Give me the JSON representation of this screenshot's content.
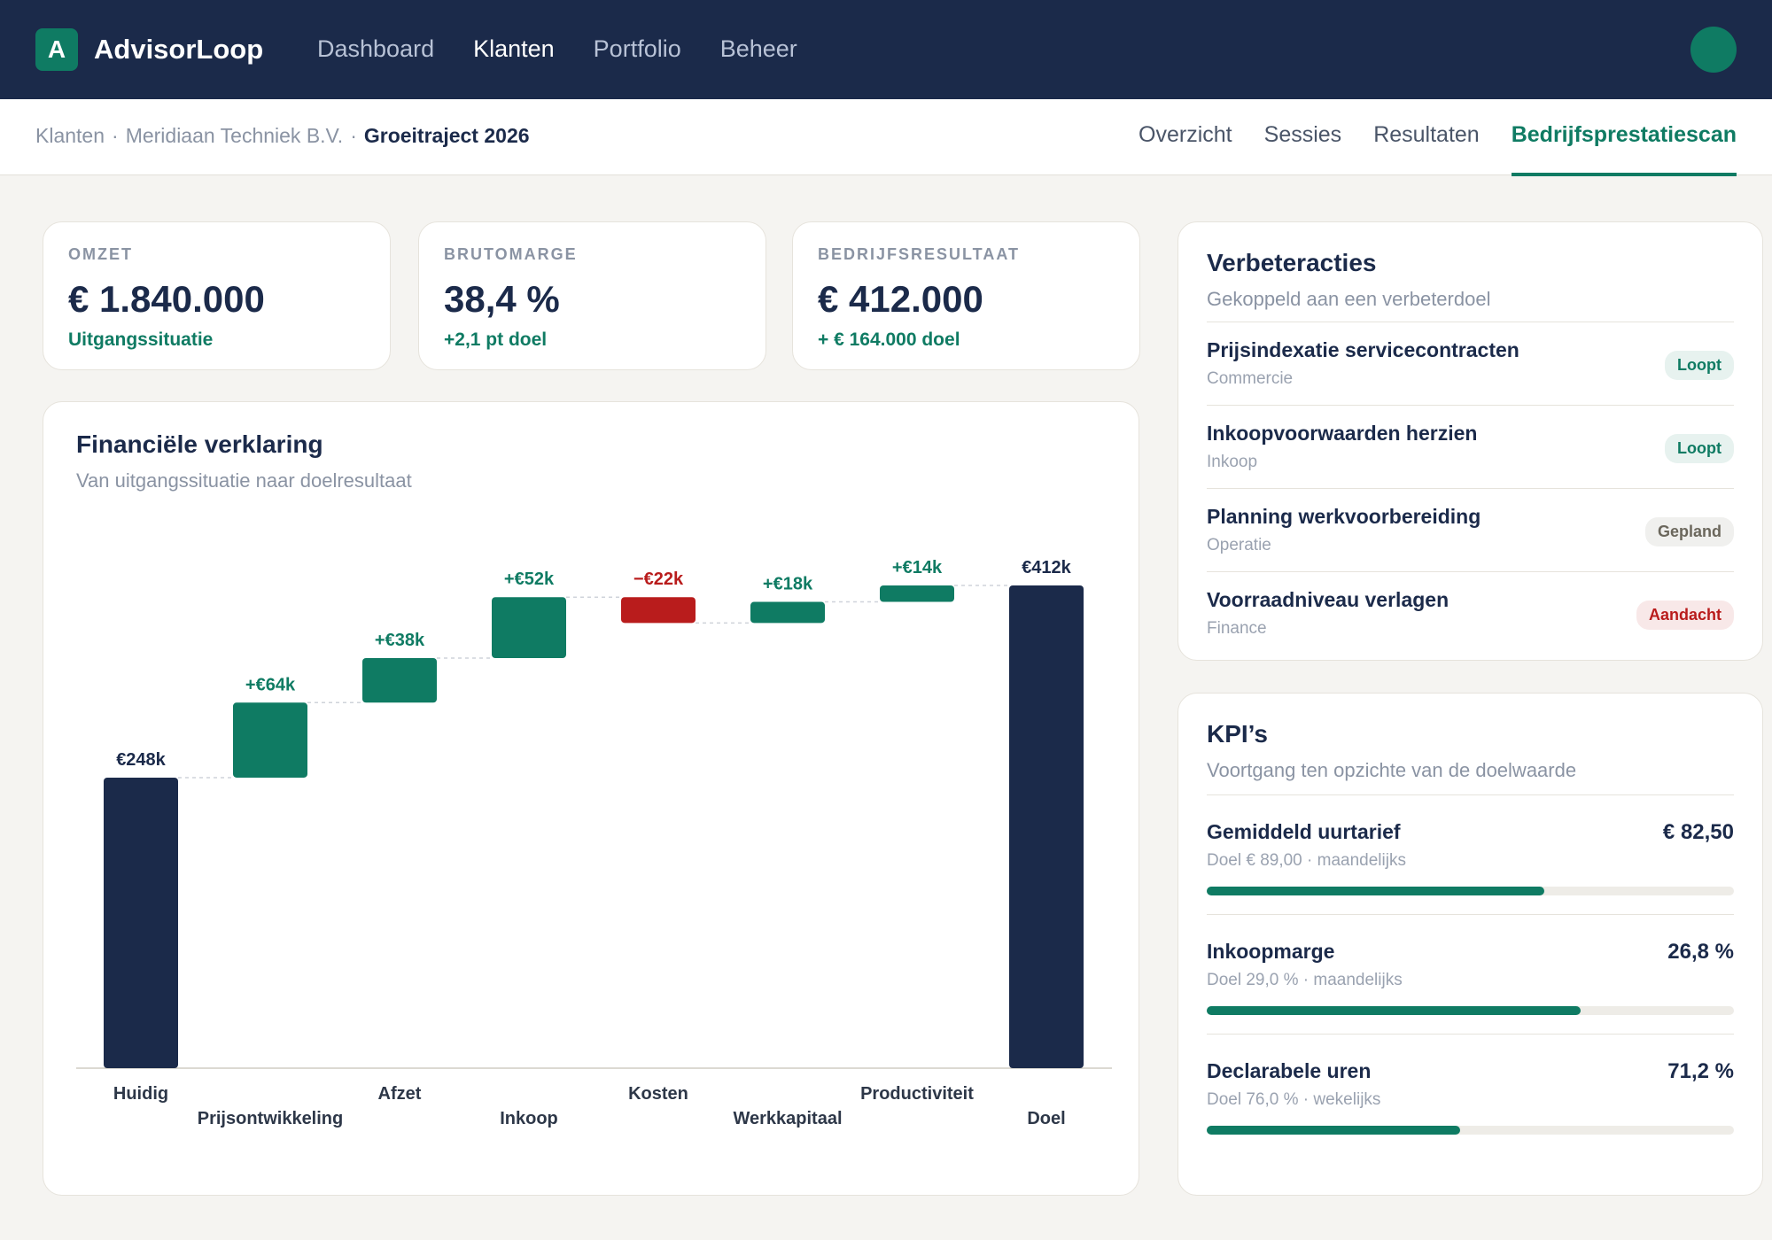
{
  "nav": {
    "logo_letter": "A",
    "brand": "AdvisorLoop",
    "items": [
      "Dashboard",
      "Klanten",
      "Portfolio",
      "Beheer"
    ],
    "active": 1
  },
  "breadcrumb": {
    "items": [
      "Klanten",
      "Meridiaan Techniek B.V.",
      "Groeitraject 2026"
    ],
    "separator": "·"
  },
  "tabs": {
    "items": [
      "Overzicht",
      "Sessies",
      "Resultaten",
      "Bedrijfsprestatiescan"
    ],
    "active": 3
  },
  "summary_cards": [
    {
      "label": "OMZET",
      "value": "€ 1.840.000",
      "note": "Uitgangssituatie"
    },
    {
      "label": "BRUTOMARGE",
      "value": "38,4 %",
      "note": "+2,1 pt doel"
    },
    {
      "label": "BEDRIJFSRESULTAAT",
      "value": "€ 412.000",
      "note": "+ € 164.000 doel"
    }
  ],
  "chart_data": {
    "type": "waterfall",
    "title": "Financiële verklaring",
    "subtitle": "Van uitgangssituatie naar doelresultaat",
    "categories": [
      "Huidig",
      "Prijsontwikkeling",
      "Afzet",
      "Inkoop",
      "Kosten",
      "Werkkapitaal",
      "Productiviteit",
      "Doel"
    ],
    "values": [
      248,
      64,
      38,
      52,
      -22,
      18,
      14,
      412
    ],
    "value_labels": [
      "€248k",
      "+€64k",
      "+€38k",
      "+€52k",
      "−€22k",
      "+€18k",
      "+€14k",
      "€412k"
    ],
    "colors": [
      "#1b2a4a",
      "#0f7b63",
      "#0f7b63",
      "#0f7b63",
      "#b91c1c",
      "#0f7b63",
      "#0f7b63",
      "#1b2a4a"
    ]
  },
  "actions": {
    "title": "Verbeteracties",
    "subtitle": "Gekoppeld aan een verbeterdoel",
    "items": [
      {
        "name": "Prijsindexatie servicecontracten",
        "area": "Commercie",
        "status": "Loopt",
        "badge_color": "#0f7b63"
      },
      {
        "name": "Inkoopvoorwaarden herzien",
        "area": "Inkoop",
        "status": "Loopt",
        "badge_color": "#0f7b63"
      },
      {
        "name": "Planning werkvoorbereiding",
        "area": "Operatie",
        "status": "Gepland",
        "badge_color": "#6b675c"
      },
      {
        "name": "Voorraadniveau verlagen",
        "area": "Finance",
        "status": "Aandacht",
        "badge_color": "#b91c1c"
      }
    ]
  },
  "kpis": {
    "title": "KPI’s",
    "subtitle": "Voortgang ten opzichte van de doelwaarde",
    "items": [
      {
        "name": "Gemiddeld uurtarief",
        "value": "€ 82,50",
        "target": "Doel € 89,00 · maandelijks",
        "progress": 64
      },
      {
        "name": "Inkoopmarge",
        "value": "26,8 %",
        "target": "Doel 29,0 % · maandelijks",
        "progress": 71
      },
      {
        "name": "Declarabele uren",
        "value": "71,2 %",
        "target": "Doel 76,0 % · wekelijks",
        "progress": 48
      }
    ]
  }
}
